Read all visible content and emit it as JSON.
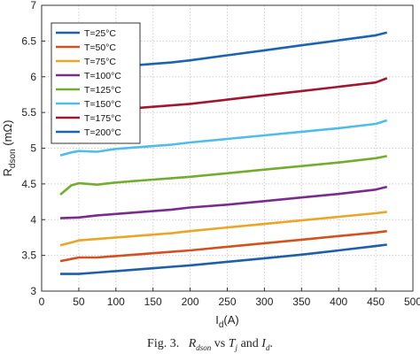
{
  "chart_data": {
    "type": "line",
    "xlabel": "I_d(A)",
    "ylabel": "R_dson (mΩ)",
    "xlim": [
      0,
      500
    ],
    "ylim": [
      3,
      7
    ],
    "xticks": [
      0,
      50,
      100,
      150,
      200,
      250,
      300,
      350,
      400,
      450,
      500
    ],
    "yticks": [
      3,
      3.5,
      4,
      4.5,
      5,
      5.5,
      6,
      6.5,
      7
    ],
    "grid": true,
    "legend_position": "top-left",
    "series": [
      {
        "name": "T=25°C",
        "color": "#1f5fa8",
        "x": [
          25,
          50,
          75,
          100,
          125,
          150,
          175,
          200,
          250,
          300,
          350,
          400,
          450,
          465
        ],
        "y": [
          3.24,
          3.24,
          3.26,
          3.28,
          3.3,
          3.32,
          3.34,
          3.36,
          3.41,
          3.46,
          3.51,
          3.57,
          3.63,
          3.65
        ]
      },
      {
        "name": "T=50°C",
        "color": "#d2521f",
        "x": [
          25,
          40,
          50,
          75,
          100,
          125,
          150,
          175,
          200,
          250,
          300,
          350,
          400,
          450,
          465
        ],
        "y": [
          3.42,
          3.45,
          3.47,
          3.47,
          3.49,
          3.51,
          3.53,
          3.55,
          3.57,
          3.62,
          3.67,
          3.72,
          3.77,
          3.82,
          3.84
        ]
      },
      {
        "name": "T=75°C",
        "color": "#eaa626",
        "x": [
          25,
          40,
          50,
          75,
          100,
          125,
          150,
          175,
          200,
          250,
          300,
          350,
          400,
          450,
          465
        ],
        "y": [
          3.64,
          3.68,
          3.71,
          3.73,
          3.75,
          3.77,
          3.79,
          3.81,
          3.84,
          3.89,
          3.94,
          3.99,
          4.04,
          4.09,
          4.11
        ]
      },
      {
        "name": "T=100°C",
        "color": "#7b2b8e",
        "x": [
          25,
          50,
          75,
          100,
          125,
          150,
          175,
          200,
          250,
          300,
          350,
          400,
          450,
          465
        ],
        "y": [
          4.02,
          4.03,
          4.06,
          4.08,
          4.1,
          4.12,
          4.14,
          4.17,
          4.21,
          4.26,
          4.31,
          4.36,
          4.42,
          4.46
        ]
      },
      {
        "name": "T=125°C",
        "color": "#72ad30",
        "x": [
          25,
          40,
          50,
          75,
          100,
          125,
          150,
          175,
          200,
          250,
          300,
          350,
          400,
          450,
          465
        ],
        "y": [
          4.35,
          4.48,
          4.51,
          4.49,
          4.52,
          4.54,
          4.56,
          4.58,
          4.6,
          4.65,
          4.7,
          4.75,
          4.8,
          4.86,
          4.89
        ]
      },
      {
        "name": "T=150°C",
        "color": "#4fbde9",
        "x": [
          25,
          40,
          50,
          75,
          100,
          125,
          150,
          175,
          200,
          250,
          300,
          350,
          400,
          450,
          465
        ],
        "y": [
          4.9,
          4.94,
          4.96,
          4.95,
          4.99,
          5.01,
          5.03,
          5.05,
          5.08,
          5.13,
          5.18,
          5.23,
          5.28,
          5.34,
          5.39
        ]
      },
      {
        "name": "T=175°C",
        "color": "#a0172f",
        "x": [
          110,
          125,
          150,
          175,
          200,
          250,
          300,
          350,
          400,
          450,
          465
        ],
        "y": [
          5.56,
          5.56,
          5.58,
          5.6,
          5.62,
          5.68,
          5.74,
          5.8,
          5.86,
          5.92,
          5.98
        ]
      },
      {
        "name": "T=200°C",
        "color": "#1a64b1",
        "x": [
          110,
          125,
          150,
          175,
          200,
          250,
          300,
          350,
          400,
          450,
          465
        ],
        "y": [
          6.15,
          6.16,
          6.18,
          6.2,
          6.23,
          6.3,
          6.37,
          6.44,
          6.51,
          6.58,
          6.62
        ]
      }
    ]
  },
  "caption": {
    "prefix": "Fig. 3.",
    "rdson": "R",
    "rdson_sub": "dson",
    "mid": " vs ",
    "tj": "T",
    "tj_sub": "j",
    "and": " and ",
    "id": "I",
    "id_sub": "d",
    "end": "."
  }
}
